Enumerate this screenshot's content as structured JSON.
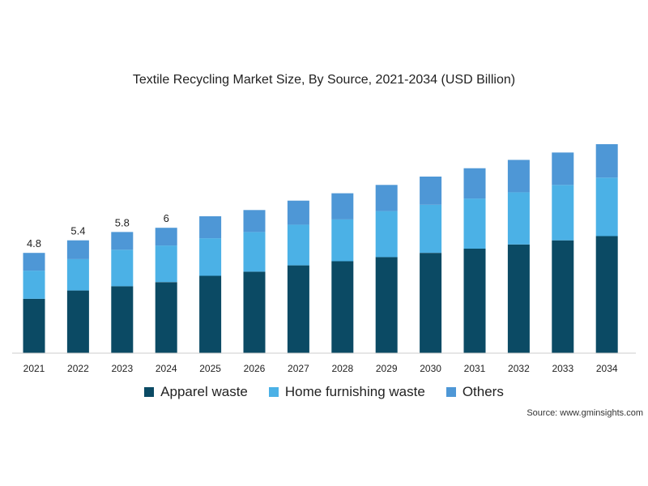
{
  "chart_data": {
    "type": "bar",
    "stacked": true,
    "title": "Textile Recycling Market Size, By Source, 2021-2034 (USD Billion)",
    "categories": [
      "2021",
      "2022",
      "2023",
      "2024",
      "2025",
      "2026",
      "2027",
      "2028",
      "2029",
      "2030",
      "2031",
      "2032",
      "2033",
      "2034"
    ],
    "series": [
      {
        "name": "Apparel waste",
        "color": "#0b4a64",
        "values": [
          2.6,
          3.0,
          3.2,
          3.4,
          3.7,
          3.9,
          4.2,
          4.4,
          4.6,
          4.8,
          5.0,
          5.2,
          5.4,
          5.6
        ]
      },
      {
        "name": "Home furnishing waste",
        "color": "#4bb1e6",
        "values": [
          1.35,
          1.5,
          1.75,
          1.75,
          1.8,
          1.9,
          1.95,
          2.0,
          2.2,
          2.3,
          2.4,
          2.5,
          2.65,
          2.8
        ]
      },
      {
        "name": "Others",
        "color": "#4e97d6",
        "values": [
          0.85,
          0.9,
          0.85,
          0.85,
          1.05,
          1.05,
          1.15,
          1.25,
          1.25,
          1.35,
          1.45,
          1.55,
          1.55,
          1.6
        ]
      }
    ],
    "data_labels": {
      "2021": "4.8",
      "2022": "5.4",
      "2023": "5.8",
      "2024": "6"
    },
    "ylim": [
      0,
      10
    ],
    "grid": false,
    "legend_position": "bottom-center"
  },
  "source": "Source: www.gminsights.com"
}
